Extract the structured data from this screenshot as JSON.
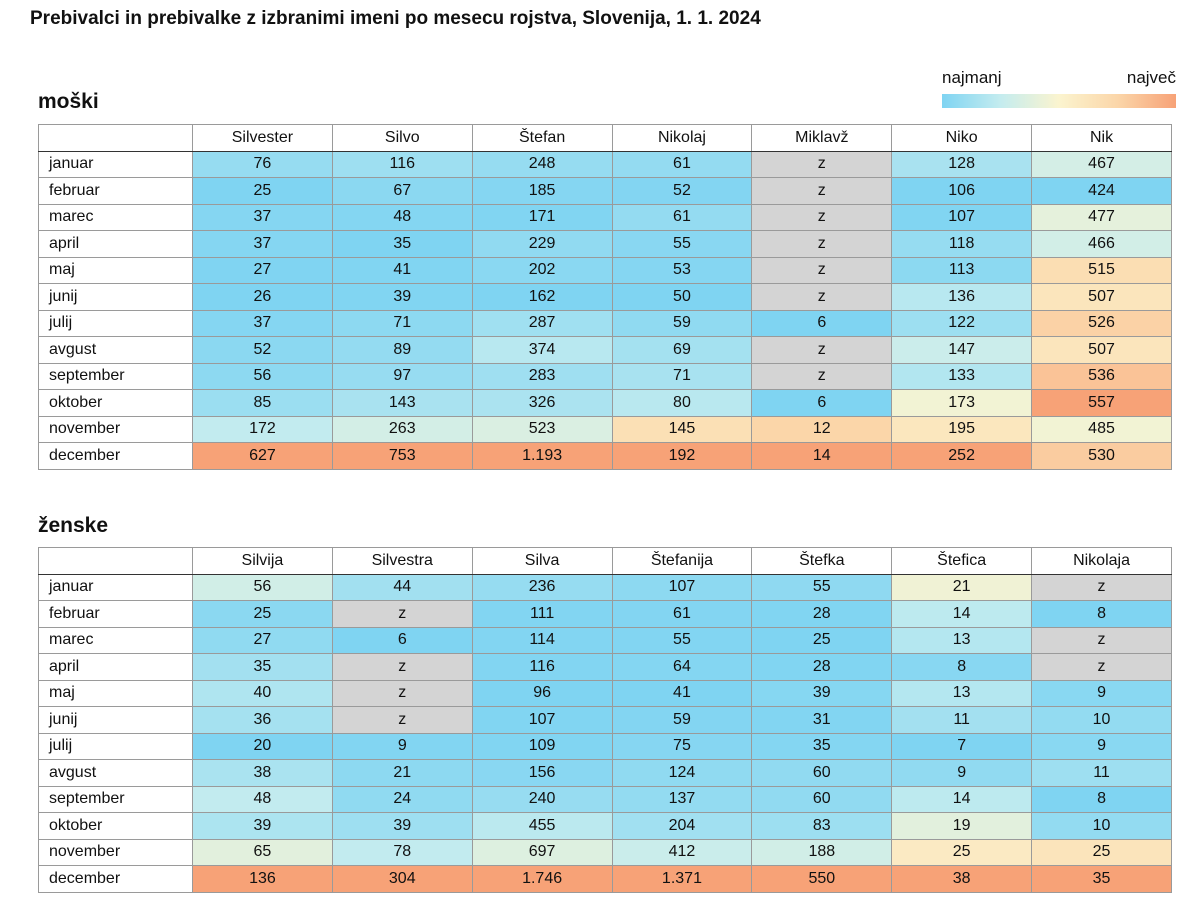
{
  "title": "Prebivalci in prebivalke z izbranimi imeni po mesecu rojstva, Slovenija, 1. 1. 2024",
  "legend": {
    "min_label": "najmanj",
    "max_label": "največ",
    "colors": [
      "#7fd4f2",
      "#c4ecef",
      "#fbf4cf",
      "#fbd6a9",
      "#f7a277"
    ],
    "missing_color": "#d4d4d4"
  },
  "chart_data": [
    {
      "type": "heatmap",
      "title": "moški",
      "rows": [
        "januar",
        "februar",
        "marec",
        "april",
        "maj",
        "junij",
        "julij",
        "avgust",
        "september",
        "oktober",
        "november",
        "december"
      ],
      "columns": [
        "Silvester",
        "Silvo",
        "Štefan",
        "Nikolaj",
        "Miklavž",
        "Niko",
        "Nik"
      ],
      "values": [
        [
          "76",
          "116",
          "248",
          "61",
          "z",
          "128",
          "467"
        ],
        [
          "25",
          "67",
          "185",
          "52",
          "z",
          "106",
          "424"
        ],
        [
          "37",
          "48",
          "171",
          "61",
          "z",
          "107",
          "477"
        ],
        [
          "37",
          "35",
          "229",
          "55",
          "z",
          "118",
          "466"
        ],
        [
          "27",
          "41",
          "202",
          "53",
          "z",
          "113",
          "515"
        ],
        [
          "26",
          "39",
          "162",
          "50",
          "z",
          "136",
          "507"
        ],
        [
          "37",
          "71",
          "287",
          "59",
          "6",
          "122",
          "526"
        ],
        [
          "52",
          "89",
          "374",
          "69",
          "z",
          "147",
          "507"
        ],
        [
          "56",
          "97",
          "283",
          "71",
          "z",
          "133",
          "536"
        ],
        [
          "85",
          "143",
          "326",
          "80",
          "6",
          "173",
          "557"
        ],
        [
          "172",
          "263",
          "523",
          "145",
          "12",
          "195",
          "485"
        ],
        [
          "627",
          "753",
          "1.193",
          "192",
          "14",
          "252",
          "530"
        ]
      ]
    },
    {
      "type": "heatmap",
      "title": "ženske",
      "rows": [
        "januar",
        "februar",
        "marec",
        "april",
        "maj",
        "junij",
        "julij",
        "avgust",
        "september",
        "oktober",
        "november",
        "december"
      ],
      "columns": [
        "Silvija",
        "Silvestra",
        "Silva",
        "Štefanija",
        "Štefka",
        "Štefica",
        "Nikolaja"
      ],
      "values": [
        [
          "56",
          "44",
          "236",
          "107",
          "55",
          "21",
          "z"
        ],
        [
          "25",
          "z",
          "111",
          "61",
          "28",
          "14",
          "8"
        ],
        [
          "27",
          "6",
          "114",
          "55",
          "25",
          "13",
          "z"
        ],
        [
          "35",
          "z",
          "116",
          "64",
          "28",
          "8",
          "z"
        ],
        [
          "40",
          "z",
          "96",
          "41",
          "39",
          "13",
          "9"
        ],
        [
          "36",
          "z",
          "107",
          "59",
          "31",
          "11",
          "10"
        ],
        [
          "20",
          "9",
          "109",
          "75",
          "35",
          "7",
          "9"
        ],
        [
          "38",
          "21",
          "156",
          "124",
          "60",
          "9",
          "11"
        ],
        [
          "48",
          "24",
          "240",
          "137",
          "60",
          "14",
          "8"
        ],
        [
          "39",
          "39",
          "455",
          "204",
          "83",
          "19",
          "10"
        ],
        [
          "65",
          "78",
          "697",
          "412",
          "188",
          "25",
          "25"
        ],
        [
          "136",
          "304",
          "1.746",
          "1.371",
          "550",
          "38",
          "35"
        ]
      ]
    }
  ]
}
